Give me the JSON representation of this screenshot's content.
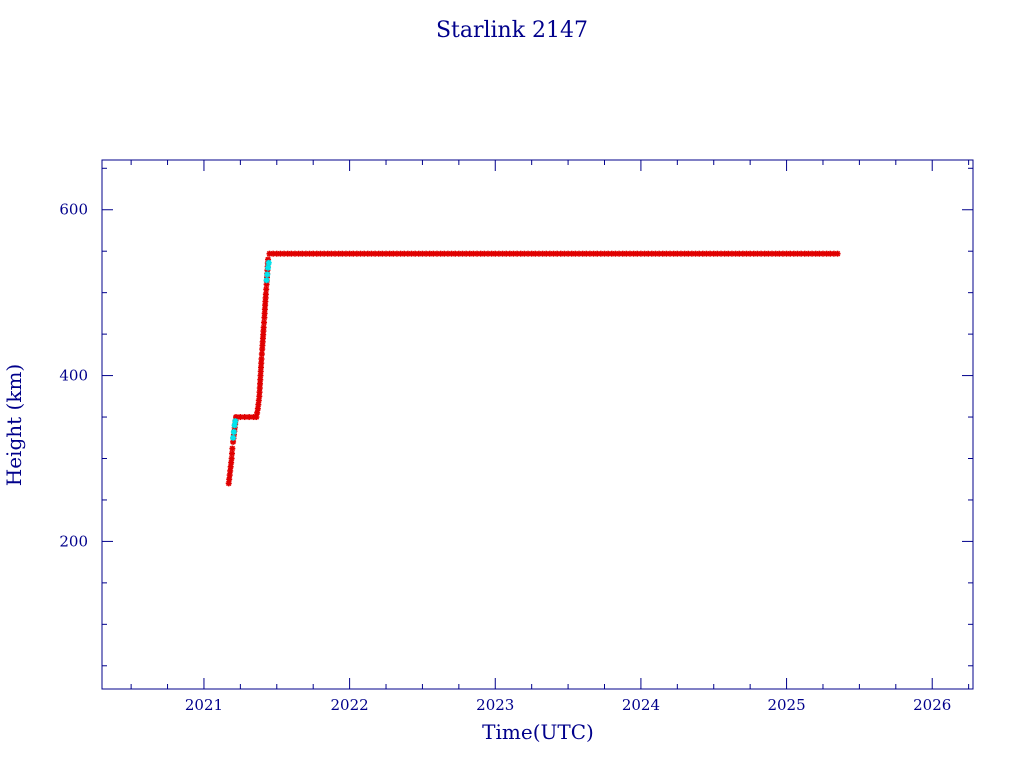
{
  "chart_data": {
    "type": "scatter",
    "title": "Starlink 2147",
    "xlabel": "Time(UTC)",
    "ylabel": "Height (km)",
    "xlim": [
      2020.3,
      2026.28
    ],
    "ylim": [
      22,
      660
    ],
    "x_ticks": [
      2021,
      2022,
      2023,
      2024,
      2025,
      2026
    ],
    "x_tick_labels": [
      "2021",
      "2022",
      "2023",
      "2024",
      "2025",
      "2026"
    ],
    "y_ticks": [
      200,
      400,
      600
    ],
    "y_tick_labels": [
      "200",
      "400",
      "600"
    ],
    "grid": false,
    "colors": {
      "axis": "#00008b",
      "primary_series": "#e00000",
      "secondary_series": "#00e5ee",
      "background": "#ffffff"
    },
    "series": [
      {
        "color": "#e00000",
        "points": [
          [
            2021.17,
            270
          ],
          [
            2021.18,
            285
          ],
          [
            2021.19,
            300
          ],
          [
            2021.195,
            312
          ],
          [
            2021.2,
            320
          ],
          [
            2021.22,
            350
          ],
          [
            2021.25,
            350
          ],
          [
            2021.28,
            350
          ],
          [
            2021.31,
            350
          ],
          [
            2021.34,
            350
          ],
          [
            2021.36,
            350
          ],
          [
            2021.37,
            360
          ],
          [
            2021.38,
            375
          ],
          [
            2021.385,
            390
          ],
          [
            2021.39,
            405
          ],
          [
            2021.395,
            420
          ],
          [
            2021.4,
            432
          ],
          [
            2021.405,
            445
          ],
          [
            2021.41,
            458
          ],
          [
            2021.415,
            470
          ],
          [
            2021.42,
            485
          ],
          [
            2021.425,
            498
          ],
          [
            2021.43,
            510
          ],
          [
            2021.44,
            540
          ],
          [
            2021.45,
            547
          ],
          [
            2021.6,
            547
          ],
          [
            2021.8,
            547
          ],
          [
            2022.0,
            547
          ],
          [
            2022.2,
            547
          ],
          [
            2022.4,
            547
          ],
          [
            2022.6,
            547
          ],
          [
            2022.8,
            547
          ],
          [
            2023.0,
            547
          ],
          [
            2023.2,
            547
          ],
          [
            2023.4,
            547
          ],
          [
            2023.6,
            547
          ],
          [
            2023.8,
            547
          ],
          [
            2024.0,
            547
          ],
          [
            2024.2,
            547
          ],
          [
            2024.4,
            547
          ],
          [
            2024.6,
            547
          ],
          [
            2024.8,
            547
          ],
          [
            2025.0,
            547
          ],
          [
            2025.2,
            547
          ],
          [
            2025.35,
            547
          ]
        ]
      },
      {
        "color": "#00e5ee",
        "points": [
          [
            2021.2,
            325
          ],
          [
            2021.205,
            332
          ],
          [
            2021.21,
            340
          ],
          [
            2021.215,
            345
          ],
          [
            2021.43,
            515
          ],
          [
            2021.435,
            522
          ],
          [
            2021.44,
            530
          ],
          [
            2021.445,
            536
          ]
        ]
      }
    ]
  }
}
